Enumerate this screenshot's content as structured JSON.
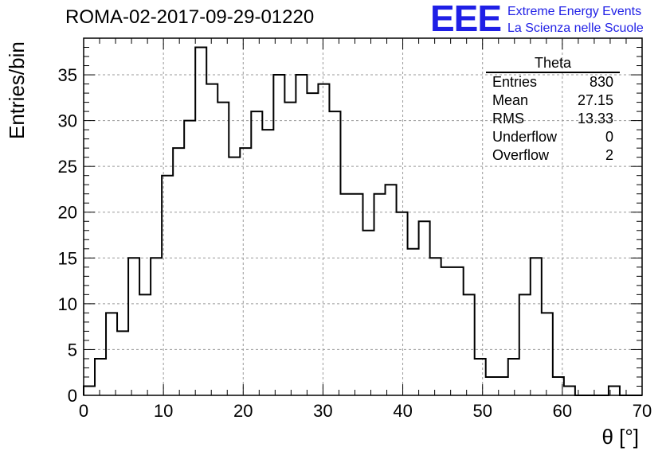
{
  "title": "ROMA-02-2017-09-29-01220",
  "logo": {
    "mark": "EEE",
    "line1": "Extreme Energy Events",
    "line2": "La Scienza nelle Scuole",
    "color": "#1f1fe6"
  },
  "stats": {
    "title": "Theta",
    "rows": [
      {
        "label": "Entries",
        "value": "830"
      },
      {
        "label": "Mean",
        "value": "27.15"
      },
      {
        "label": "RMS",
        "value": "13.33"
      },
      {
        "label": "Underflow",
        "value": "0"
      },
      {
        "label": "Overflow",
        "value": "2"
      }
    ]
  },
  "chart_data": {
    "type": "histogram",
    "xlabel": "θ [°]",
    "ylabel": "Entries/bin",
    "xlim": [
      0,
      70
    ],
    "ylim": [
      0,
      39
    ],
    "bin_width": 1.4,
    "bin_edges_start": 0,
    "xticks": [
      0,
      10,
      20,
      30,
      40,
      50,
      60,
      70
    ],
    "yticks": [
      0,
      5,
      10,
      15,
      20,
      25,
      30,
      35
    ],
    "grid": true,
    "values": [
      1,
      4,
      9,
      7,
      15,
      11,
      15,
      24,
      27,
      30,
      38,
      34,
      32,
      26,
      27,
      31,
      29,
      35,
      32,
      35,
      33,
      34,
      31,
      22,
      22,
      18,
      22,
      23,
      20,
      16,
      19,
      15,
      14,
      14,
      11,
      4,
      2,
      2,
      4,
      11,
      15,
      9,
      2,
      1,
      0,
      0,
      0,
      1,
      0,
      0
    ]
  }
}
